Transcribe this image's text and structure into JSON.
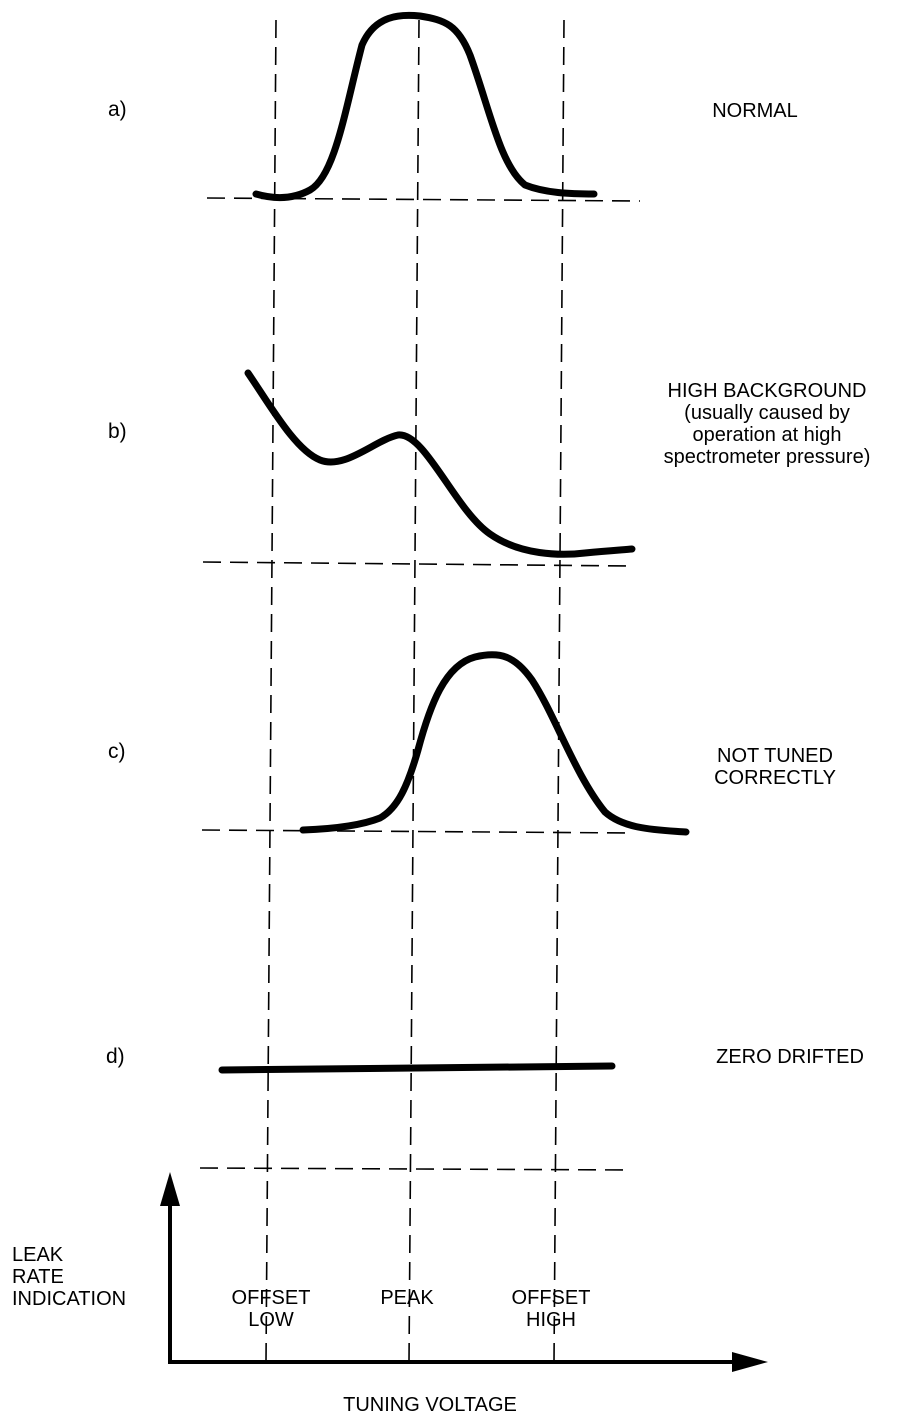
{
  "panels": [
    {
      "id": "a",
      "case_label": "a)",
      "description": [
        "NORMAL"
      ]
    },
    {
      "id": "b",
      "case_label": "b)",
      "description": [
        "HIGH BACKGROUND",
        "(usually caused by",
        "operation at high",
        "spectrometer pressure)"
      ]
    },
    {
      "id": "c",
      "case_label": "c)",
      "description": [
        "NOT TUNED",
        "CORRECTLY"
      ]
    },
    {
      "id": "d",
      "case_label": "d)",
      "description": [
        "ZERO DRIFTED"
      ]
    }
  ],
  "axes": {
    "y_label": [
      "LEAK",
      "RATE",
      "INDICATION"
    ],
    "x_label": "TUNING VOLTAGE",
    "ticks": [
      {
        "lines": [
          "OFFSET",
          "LOW"
        ]
      },
      {
        "lines": [
          "PEAK"
        ]
      },
      {
        "lines": [
          "OFFSET",
          "HIGH"
        ]
      }
    ]
  }
}
